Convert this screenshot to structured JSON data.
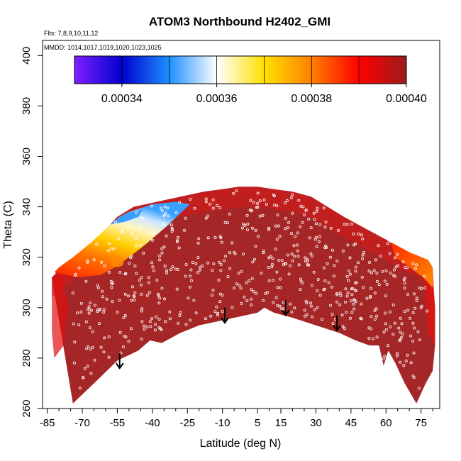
{
  "chart_data": {
    "type": "heatmap",
    "title": "ATOM3 Northbound H2402_GMI",
    "subtitle_flights": "Flts: 7,8,9,10,11,12",
    "subtitle_dates": "MMDD: 1014,1017,1019,1020,1023,1025",
    "xlabel": "Latitude (deg N)",
    "ylabel": "Theta (C)",
    "xlim": [
      -87,
      83
    ],
    "ylim": [
      260,
      406
    ],
    "x_ticks": [
      -85,
      -70,
      -55,
      -40,
      -25,
      -10,
      5,
      15,
      30,
      45,
      60,
      75
    ],
    "y_ticks": [
      260,
      280,
      300,
      320,
      340,
      360,
      380,
      400
    ],
    "colorbar": {
      "range": [
        0.00033,
        0.0004
      ],
      "tick_values": [
        0.00034,
        0.00036,
        0.00038,
        0.0004
      ],
      "tick_labels": [
        "0.00034",
        "0.00036",
        "0.00038",
        "0.00040"
      ],
      "colors": [
        "#7f1fff",
        "#0000d0",
        "#1e90ff",
        "#ffffff",
        "#ffe000",
        "#ff8000",
        "#ff0000",
        "#9b1b1b"
      ]
    },
    "field_color": "#a52626",
    "lower_boundary": [
      [
        -74,
        262
      ],
      [
        -65,
        270
      ],
      [
        -55,
        279
      ],
      [
        -46,
        283
      ],
      [
        -41,
        287
      ],
      [
        -36,
        286
      ],
      [
        -28,
        290
      ],
      [
        -20,
        293
      ],
      [
        -10,
        295
      ],
      [
        0,
        297
      ],
      [
        5,
        298
      ],
      [
        8,
        300
      ],
      [
        12,
        298
      ],
      [
        20,
        296
      ],
      [
        30,
        293
      ],
      [
        40,
        290
      ],
      [
        47,
        287
      ],
      [
        53,
        285
      ],
      [
        57,
        285
      ],
      [
        59,
        277
      ],
      [
        61,
        283
      ],
      [
        64,
        278
      ],
      [
        68,
        270
      ],
      [
        73,
        262
      ],
      [
        77,
        270
      ],
      [
        80,
        275
      ],
      [
        81,
        285
      ]
    ],
    "upper_boundary": [
      [
        -83,
        312
      ],
      [
        -80,
        315
      ],
      [
        -75,
        318
      ],
      [
        -66,
        325
      ],
      [
        -58,
        333
      ],
      [
        -55,
        336
      ],
      [
        -48,
        340
      ],
      [
        -38,
        342
      ],
      [
        -28,
        344
      ],
      [
        -18,
        346
      ],
      [
        -10,
        347
      ],
      [
        -3,
        348
      ],
      [
        5,
        348
      ],
      [
        12,
        347
      ],
      [
        20,
        346
      ],
      [
        28,
        344
      ],
      [
        35,
        340
      ],
      [
        42,
        336
      ],
      [
        48,
        333
      ],
      [
        54,
        330
      ],
      [
        60,
        327
      ],
      [
        66,
        323
      ],
      [
        72,
        321
      ],
      [
        77,
        318
      ],
      [
        79,
        316
      ],
      [
        80,
        310
      ],
      [
        81,
        300
      ],
      [
        81,
        290
      ]
    ],
    "high_regions": [
      {
        "name": "upper-left-gradient",
        "points": [
          [
            -82,
            314
          ],
          [
            -80,
            316
          ],
          [
            -74,
            320
          ],
          [
            -66,
            326
          ],
          [
            -58,
            333
          ],
          [
            -54,
            336
          ],
          [
            -50,
            338
          ],
          [
            -40,
            341
          ],
          [
            -30,
            342
          ],
          [
            -24,
            341
          ],
          [
            -33,
            333
          ],
          [
            -43,
            325
          ],
          [
            -50,
            320
          ],
          [
            -56,
            316
          ],
          [
            -62,
            313
          ],
          [
            -72,
            312
          ]
        ]
      },
      {
        "name": "upper-right-gradient",
        "points": [
          [
            62,
            326
          ],
          [
            70,
            322
          ],
          [
            78,
            319
          ],
          [
            80,
            316
          ],
          [
            80,
            308
          ],
          [
            76,
            312
          ],
          [
            70,
            316
          ],
          [
            64,
            320
          ]
        ]
      }
    ],
    "arrow_annotations": [
      {
        "lat": -54,
        "theta_top": 282,
        "theta_bottom": 276
      },
      {
        "lat": -9,
        "theta_top": 300,
        "theta_bottom": 294
      },
      {
        "lat": 17,
        "theta_top": 303,
        "theta_bottom": 297
      },
      {
        "lat": 39,
        "theta_top": 297,
        "theta_bottom": 291
      }
    ]
  }
}
